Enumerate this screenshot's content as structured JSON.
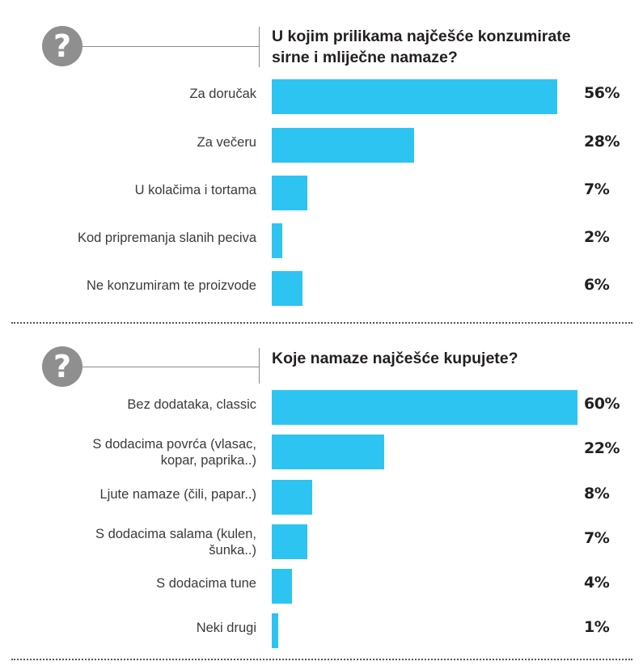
{
  "chart_data": [
    {
      "type": "bar",
      "orientation": "horizontal",
      "title": "U kojim prilikama najčešće konzumirate sirne i mliječne namaze?",
      "title_lines": [
        "U kojim prilikama najčešće konzumirate",
        "sirne i mliječne namaze?"
      ],
      "categories": [
        "Za doručak",
        "Za večeru",
        "U kolačima i tortama",
        "Kod pripremanja slanih peciva",
        "Ne konzumiram te  proizvode"
      ],
      "category_lines": [
        [
          "Za doručak"
        ],
        [
          "Za večeru"
        ],
        [
          "U kolačima i tortama"
        ],
        [
          "Kod pripremanja slanih peciva"
        ],
        [
          "Ne konzumiram te  proizvode"
        ]
      ],
      "values": [
        56,
        28,
        7,
        2,
        6
      ],
      "value_labels": [
        "56%",
        "28%",
        "7%",
        "2%",
        "6%"
      ],
      "unit": "%",
      "color": "#2ec4f2",
      "grid": false
    },
    {
      "type": "bar",
      "orientation": "horizontal",
      "title": "Koje namaze najčešće kupujete?",
      "title_lines": [
        "Koje namaze najčešće kupujete?"
      ],
      "categories": [
        "Bez dodataka, classic",
        "S dodacima povrća (vlasac, kopar, paprika..)",
        "Ljute namaze (čili, papar..)",
        "S dodacima salama (kulen, šunka..)",
        "S dodacima tune",
        "Neki drugi"
      ],
      "category_lines": [
        [
          "Bez dodataka, classic"
        ],
        [
          "S dodacima povrća (vlasac,",
          "kopar, paprika..)"
        ],
        [
          "Ljute namaze (čili, papar..)"
        ],
        [
          "S dodacima salama (kulen,",
          "šunka..)"
        ],
        [
          "S dodacima tune"
        ],
        [
          "Neki drugi"
        ]
      ],
      "values": [
        60,
        22,
        8,
        7,
        4,
        1
      ],
      "value_labels": [
        "60%",
        "22%",
        "8%",
        "7%",
        "4%",
        "1%"
      ],
      "unit": "%",
      "color": "#2ec4f2",
      "grid": false
    }
  ],
  "icons": {
    "question": "question-mark-icon",
    "question_glyph": "?"
  },
  "colors": {
    "bar": "#2ec4f2",
    "icon": "#8f8f8f",
    "text": "#231f20"
  }
}
